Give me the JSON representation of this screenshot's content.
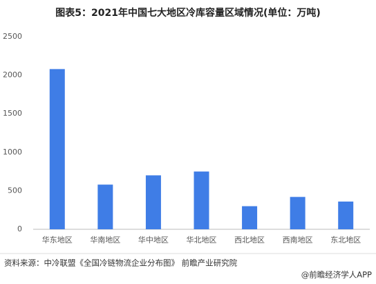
{
  "chart_data": {
    "type": "bar",
    "title": "图表5：2021年中国七大地区冷库容量区域情况(单位：万吨)",
    "categories": [
      "华东地区",
      "华南地区",
      "华中地区",
      "华北地区",
      "西北地区",
      "西南地区",
      "东北地区"
    ],
    "values": [
      2080,
      580,
      700,
      750,
      300,
      420,
      360
    ],
    "color": "#3f7de6",
    "ylim": [
      0,
      2500
    ],
    "yticks": [
      0,
      500,
      1000,
      1500,
      2000,
      2500
    ],
    "grid": false,
    "source": "资料来源：中冷联盟《全国冷链物流企业分布图》 前瞻产业研究院",
    "footer": "@前瞻经济学人APP"
  }
}
